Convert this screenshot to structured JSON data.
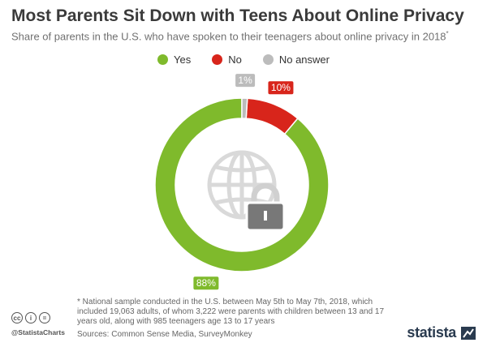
{
  "title": "Most Parents Sit Down with Teens About Online Privacy",
  "subtitle": "Share of parents in the U.S. who have spoken to their teenagers about online privacy in 2018",
  "subtitle_mark": "*",
  "colors": {
    "yes": "#7fba2c",
    "no": "#d8251b",
    "no_answer": "#bcbcbc",
    "icon": "#d9d9d9",
    "lock": "#787878"
  },
  "chart_data": {
    "type": "pie",
    "style": "donut",
    "title": "Most Parents Sit Down with Teens About Online Privacy",
    "unit": "%",
    "categories": [
      "Yes",
      "No",
      "No answer"
    ],
    "values": [
      88,
      10,
      1
    ],
    "labels": [
      "88%",
      "10%",
      "1%"
    ],
    "legend_position": "top"
  },
  "center_icon": {
    "name": "globe-with-padlock-icon"
  },
  "footnote": "* National sample conducted in the U.S. between May 5th to May 7th, 2018, which included 19,063 adults, of whom 3,222 were parents with children between 13 and 17 years old, along with 985 teenagers age 13 to 17 years",
  "sources": "Sources: Common Sense Media, SurveyMonkey",
  "license_icons": [
    "cc",
    "i",
    "="
  ],
  "handle": "@StatistaCharts",
  "brand": "statista"
}
